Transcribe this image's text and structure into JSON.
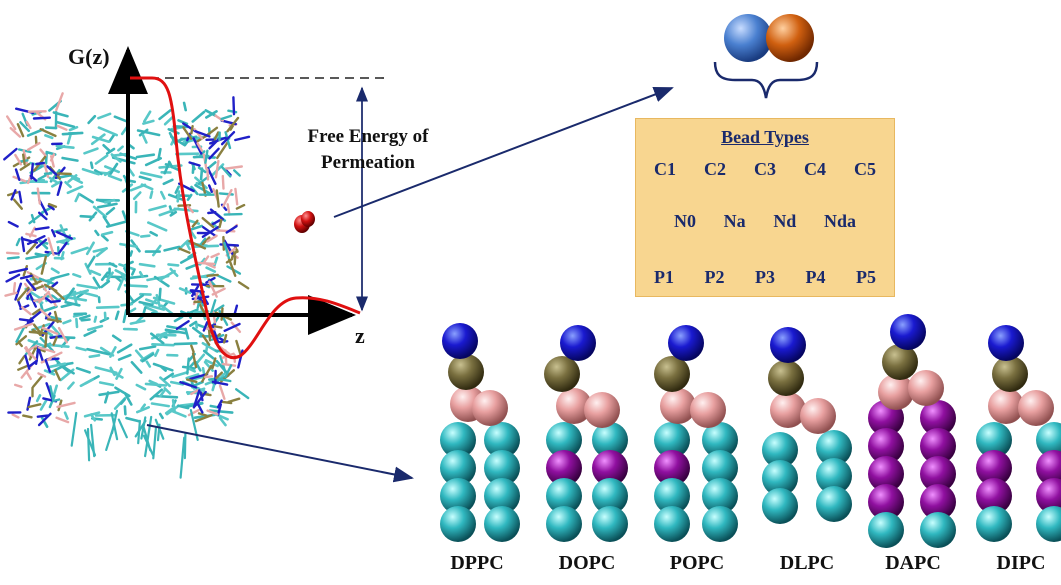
{
  "graph": {
    "y_label": "G(z)",
    "x_label": "z",
    "annotation": "Free Energy of\nPermeation"
  },
  "bead_types": {
    "title": "Bead Types",
    "rows": [
      [
        "C1",
        "C2",
        "C3",
        "C4",
        "C5"
      ],
      [
        "N0",
        "Na",
        "Nd",
        "Nda"
      ],
      [
        "P1",
        "P2",
        "P3",
        "P4",
        "P5"
      ]
    ]
  },
  "lipids": [
    "DPPC",
    "DOPC",
    "POPC",
    "DLPC",
    "DAPC",
    "DIPC"
  ],
  "colors": {
    "choline": "#1a1ad0",
    "phosphate": "#7a7040",
    "glycerol": "#e8a0a0",
    "tail": "#30b8c0",
    "unsaturated": "#9010a0",
    "arrow": "#1a2a6c",
    "curve": "#e01010",
    "bead_left": "#4a80d0",
    "bead_right": "#d06010",
    "permeant": "#d01010"
  }
}
